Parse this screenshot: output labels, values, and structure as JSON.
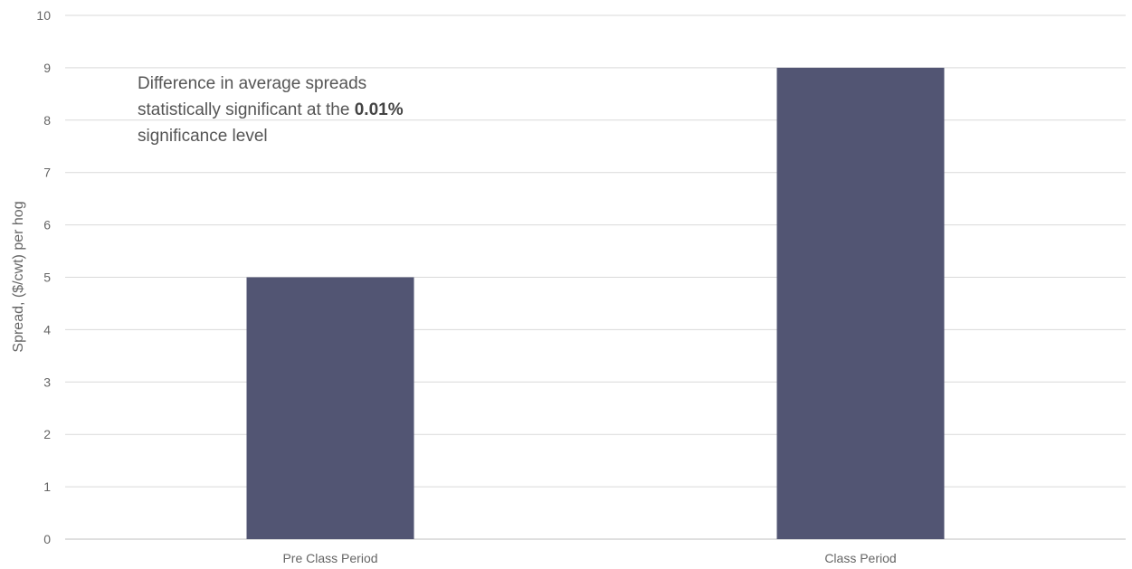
{
  "chart_data": {
    "type": "bar",
    "categories": [
      "Pre Class Period",
      "Class Period"
    ],
    "values": [
      5,
      9
    ],
    "title": "",
    "xlabel": "",
    "ylabel": "Spread, ($/cwt) per hog",
    "ylim": [
      0,
      10
    ],
    "yticks": [
      0,
      1,
      2,
      3,
      4,
      5,
      6,
      7,
      8,
      9,
      10
    ],
    "grid": true,
    "bar_color": "#525573",
    "grid_color": "#d9d9d9",
    "annotation": {
      "line1": "Difference in average spreads",
      "line2_prefix": "statistically significant at the ",
      "line2_bold": "0.01%",
      "line3": "significance level"
    }
  }
}
